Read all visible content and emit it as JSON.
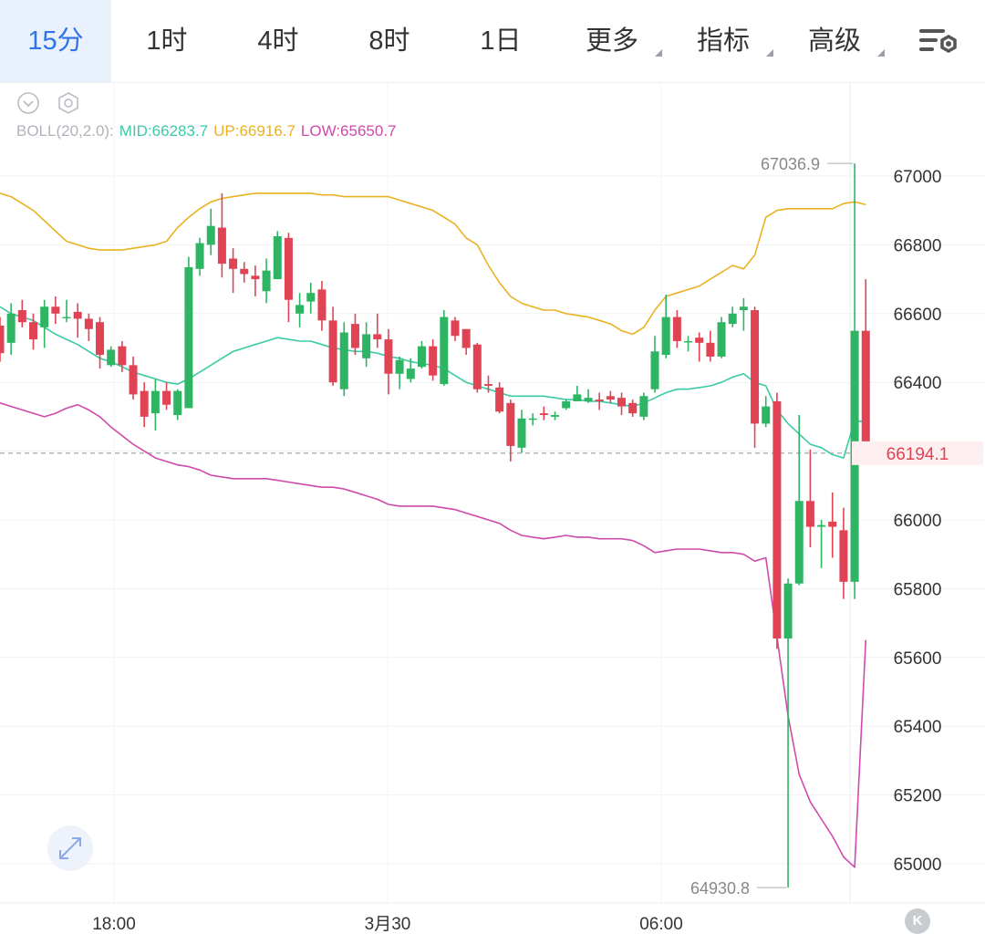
{
  "tabs": [
    {
      "label": "15分",
      "active": true
    },
    {
      "label": "1时"
    },
    {
      "label": "4时"
    },
    {
      "label": "8时"
    },
    {
      "label": "1日"
    },
    {
      "label": "更多",
      "dropdown": true
    },
    {
      "label": "指标",
      "dropdown": true
    },
    {
      "label": "高级",
      "dropdown": true
    }
  ],
  "icons": {
    "collapse": "chevron-down-circle-icon",
    "eye": "eye-icon",
    "settings": "settings-icon",
    "expand": "expand-icon"
  },
  "legend": {
    "name": "BOLL(20,2.0):",
    "mid": "MID:66283.7",
    "up": "UP:66916.7",
    "low": "LOW:65650.7"
  },
  "colors": {
    "up_candle": "#2fb464",
    "down_candle": "#e04354",
    "mid_line": "#3ccaa6",
    "upper_line": "#e9b223",
    "lower_line": "#cf4aaa",
    "active_tab": "#2f73e8"
  },
  "k_button": "K",
  "chart_data": {
    "type": "candlestick",
    "ylim": [
      64880,
      67130
    ],
    "y_ticks": [
      65000,
      65200,
      65400,
      65600,
      65800,
      66000,
      66200,
      66400,
      66600,
      66800,
      67000
    ],
    "y_tick_labels": [
      "65000",
      "65200",
      "65400",
      "65600",
      "65800",
      "66000",
      "",
      "66400",
      "66600",
      "66800",
      "67000"
    ],
    "x_tick_labels": [
      "18:00",
      "3月30",
      "06:00"
    ],
    "current_price": 66194.1,
    "current_price_label": "66194.1",
    "max_label": "67036.9",
    "min_label": "64930.8",
    "max_value": 67036.9,
    "min_value": 64930.8,
    "candles": [
      [
        66565,
        66485,
        66590,
        66460
      ],
      [
        66515,
        66600,
        66630,
        66480
      ],
      [
        66610,
        66575,
        66640,
        66560
      ],
      [
        66575,
        66525,
        66600,
        66495
      ],
      [
        66560,
        66620,
        66640,
        66500
      ],
      [
        66620,
        66600,
        66650,
        66570
      ],
      [
        66590,
        66590,
        66640,
        66575
      ],
      [
        66605,
        66585,
        66630,
        66530
      ],
      [
        66585,
        66555,
        66600,
        66520
      ],
      [
        66575,
        66480,
        66590,
        66440
      ],
      [
        66450,
        66495,
        66505,
        66445
      ],
      [
        66505,
        66450,
        66520,
        66430
      ],
      [
        66450,
        66365,
        66475,
        66350
      ],
      [
        66375,
        66300,
        66400,
        66270
      ],
      [
        66310,
        66375,
        66410,
        66260
      ],
      [
        66375,
        66335,
        66400,
        66320
      ],
      [
        66305,
        66375,
        66380,
        66290
      ],
      [
        66325,
        66735,
        66765,
        66325
      ],
      [
        66730,
        66805,
        66820,
        66710
      ],
      [
        66800,
        66855,
        66905,
        66770
      ],
      [
        66850,
        66745,
        66950,
        66705
      ],
      [
        66760,
        66730,
        66790,
        66660
      ],
      [
        66730,
        66715,
        66750,
        66690
      ],
      [
        66710,
        66700,
        66740,
        66650
      ],
      [
        66665,
        66725,
        66760,
        66630
      ],
      [
        66700,
        66825,
        66840,
        66700
      ],
      [
        66820,
        66640,
        66835,
        66575
      ],
      [
        66600,
        66625,
        66660,
        66560
      ],
      [
        66635,
        66660,
        66690,
        66600
      ],
      [
        66670,
        66580,
        66695,
        66550
      ],
      [
        66580,
        66400,
        66620,
        66390
      ],
      [
        66380,
        66545,
        66575,
        66360
      ],
      [
        66570,
        66500,
        66600,
        66480
      ],
      [
        66470,
        66540,
        66575,
        66445
      ],
      [
        66540,
        66525,
        66600,
        66500
      ],
      [
        66525,
        66425,
        66555,
        66365
      ],
      [
        66425,
        66465,
        66475,
        66380
      ],
      [
        66410,
        66440,
        66470,
        66400
      ],
      [
        66445,
        66505,
        66520,
        66440
      ],
      [
        66505,
        66420,
        66525,
        66405
      ],
      [
        66395,
        66590,
        66610,
        66390
      ],
      [
        66580,
        66535,
        66590,
        66520
      ],
      [
        66555,
        66500,
        66510,
        66480
      ],
      [
        66510,
        66380,
        66515,
        66370
      ],
      [
        66395,
        66390,
        66420,
        66370
      ],
      [
        66385,
        66315,
        66400,
        66310
      ],
      [
        66340,
        66215,
        66350,
        66170
      ],
      [
        66210,
        66295,
        66320,
        66195
      ],
      [
        66295,
        66295,
        66310,
        66275
      ],
      [
        66310,
        66305,
        66330,
        66290
      ],
      [
        66300,
        66305,
        66315,
        66290
      ],
      [
        66325,
        66345,
        66350,
        66320
      ],
      [
        66345,
        66365,
        66390,
        66345
      ],
      [
        66345,
        66355,
        66380,
        66340
      ],
      [
        66350,
        66345,
        66370,
        66320
      ],
      [
        66360,
        66350,
        66375,
        66340
      ],
      [
        66355,
        66330,
        66370,
        66305
      ],
      [
        66340,
        66310,
        66350,
        66300
      ],
      [
        66300,
        66360,
        66370,
        66290
      ],
      [
        66380,
        66490,
        66535,
        66370
      ],
      [
        66480,
        66590,
        66655,
        66470
      ],
      [
        66590,
        66520,
        66610,
        66500
      ],
      [
        66520,
        66520,
        66535,
        66490
      ],
      [
        66530,
        66515,
        66545,
        66460
      ],
      [
        66515,
        66475,
        66550,
        66460
      ],
      [
        66475,
        66575,
        66590,
        66470
      ],
      [
        66570,
        66600,
        66620,
        66560
      ],
      [
        66610,
        66620,
        66645,
        66550
      ],
      [
        66610,
        66280,
        66620,
        66210
      ],
      [
        66280,
        66330,
        66360,
        66270
      ],
      [
        66345,
        65655,
        66370,
        65625
      ],
      [
        65655,
        65815,
        65830,
        64930.8
      ],
      [
        65815,
        66055,
        66305,
        65810
      ],
      [
        66055,
        65980,
        66205,
        65920
      ],
      [
        65980,
        65985,
        66000,
        65860
      ],
      [
        65995,
        65980,
        66080,
        65890
      ],
      [
        65970,
        65820,
        66035,
        65770
      ],
      [
        65820,
        66550,
        67036.9,
        65770
      ],
      [
        66550,
        66194.1,
        66700,
        66194.1
      ]
    ],
    "mid": [
      66620,
      66600,
      66590,
      66580,
      66560,
      66540,
      66525,
      66510,
      66490,
      66470,
      66460,
      66445,
      66430,
      66420,
      66410,
      66400,
      66395,
      66410,
      66430,
      66450,
      66470,
      66490,
      66500,
      66510,
      66520,
      66530,
      66525,
      66520,
      66520,
      66510,
      66500,
      66495,
      66490,
      66490,
      66485,
      66475,
      66470,
      66460,
      66455,
      66450,
      66440,
      66420,
      66400,
      66390,
      66380,
      66370,
      66360,
      66360,
      66360,
      66360,
      66355,
      66350,
      66350,
      66345,
      66345,
      66340,
      66335,
      66330,
      66340,
      66355,
      66370,
      66380,
      66380,
      66385,
      66390,
      66400,
      66415,
      66425,
      66400,
      66390,
      66320,
      66280,
      66250,
      66220,
      66210,
      66190,
      66180,
      66290,
      66283.7
    ],
    "upper": [
      66950,
      66940,
      66920,
      66900,
      66870,
      66840,
      66810,
      66800,
      66790,
      66785,
      66785,
      66785,
      66790,
      66795,
      66800,
      66810,
      66850,
      66880,
      66905,
      66925,
      66935,
      66940,
      66945,
      66950,
      66950,
      66950,
      66950,
      66950,
      66950,
      66945,
      66945,
      66940,
      66940,
      66940,
      66940,
      66940,
      66930,
      66920,
      66910,
      66900,
      66880,
      66860,
      66820,
      66800,
      66740,
      66690,
      66650,
      66630,
      66620,
      66610,
      66610,
      66600,
      66595,
      66590,
      66580,
      66570,
      66550,
      66540,
      66560,
      66610,
      66650,
      66660,
      66670,
      66680,
      66700,
      66720,
      66740,
      66730,
      66770,
      66880,
      66900,
      66905,
      66905,
      66905,
      66905,
      66905,
      66920,
      66925,
      66916.7
    ],
    "lower": [
      66340,
      66330,
      66320,
      66310,
      66300,
      66310,
      66325,
      66335,
      66320,
      66300,
      66270,
      66245,
      66220,
      66200,
      66180,
      66170,
      66160,
      66155,
      66145,
      66130,
      66125,
      66120,
      66120,
      66120,
      66120,
      66115,
      66110,
      66105,
      66100,
      66095,
      66095,
      66090,
      66080,
      66070,
      66060,
      66045,
      66040,
      66040,
      66040,
      66040,
      66035,
      66030,
      66020,
      66010,
      66000,
      65990,
      65970,
      65955,
      65950,
      65945,
      65950,
      65955,
      65950,
      65950,
      65945,
      65945,
      65945,
      65940,
      65925,
      65905,
      65910,
      65915,
      65915,
      65915,
      65910,
      65905,
      65905,
      65900,
      65880,
      65890,
      65660,
      65430,
      65260,
      65180,
      65130,
      65080,
      65020,
      64990,
      65650.7
    ]
  }
}
